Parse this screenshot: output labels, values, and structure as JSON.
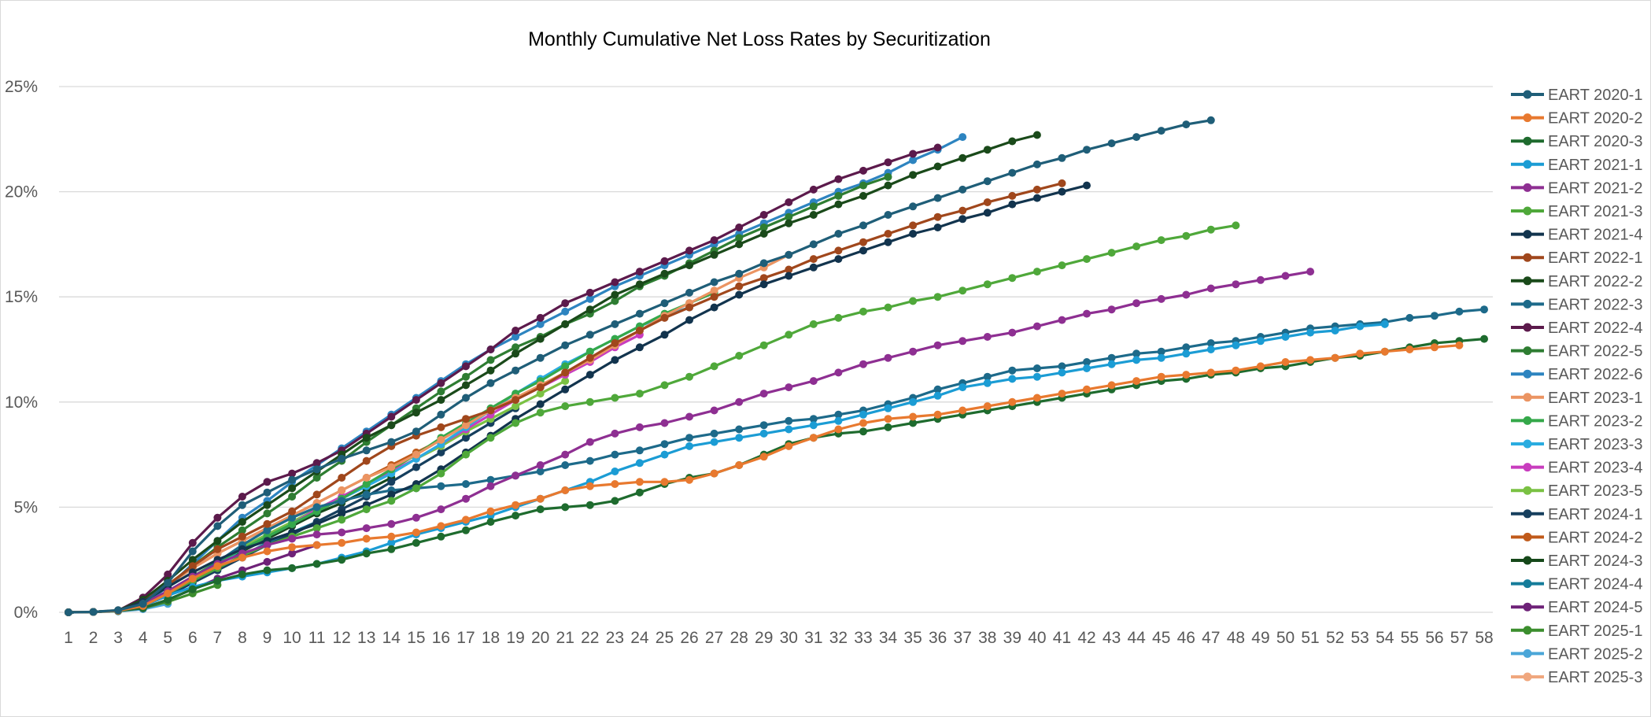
{
  "chart_data": {
    "type": "line",
    "title": "Monthly Cumulative Net Loss Rates by Securitization",
    "xlabel": "",
    "ylabel": "",
    "x_range": [
      1,
      58
    ],
    "ylim": [
      0,
      25
    ],
    "y_ticks": [
      0,
      5,
      10,
      15,
      20,
      25
    ],
    "y_tick_format": "percent",
    "grid": "horizontal",
    "legend": "right",
    "series": [
      {
        "name": "EART 2020-1",
        "color": "#1F5E78",
        "values": [
          0,
          0.02,
          0.1,
          0.4,
          1.4,
          2.9,
          4.1,
          5.1,
          5.7,
          6.3,
          6.8,
          7.3,
          7.7,
          8.1,
          8.6,
          9.4,
          10.2,
          10.9,
          11.5,
          12.1,
          12.7,
          13.2,
          13.7,
          14.2,
          14.7,
          15.2,
          15.7,
          16.1,
          16.6,
          17.0,
          17.5,
          18.0,
          18.4,
          18.9,
          19.3,
          19.7,
          20.1,
          20.5,
          20.9,
          21.3,
          21.6,
          22.0,
          22.3,
          22.6,
          22.9,
          23.2,
          23.4
        ]
      },
      {
        "name": "EART 2020-2",
        "color": "#E8792F",
        "values": [
          0,
          0.02,
          0.08,
          0.3,
          0.9,
          1.6,
          2.2,
          2.6,
          2.9,
          3.1,
          3.2,
          3.3,
          3.5,
          3.6,
          3.8,
          4.1,
          4.4,
          4.8,
          5.1,
          5.4,
          5.8,
          6.0,
          6.1,
          6.2,
          6.2,
          6.3,
          6.6,
          7.0,
          7.4,
          7.9,
          8.3,
          8.7,
          9.0,
          9.2,
          9.3,
          9.4,
          9.6,
          9.8,
          10.0,
          10.2,
          10.4,
          10.6,
          10.8,
          11.0,
          11.2,
          11.3,
          11.4,
          11.5,
          11.7,
          11.9,
          12.0,
          12.1,
          12.3,
          12.4,
          12.5,
          12.6,
          12.7
        ]
      },
      {
        "name": "EART 2020-3",
        "color": "#1E6B2E",
        "values": [
          0,
          0.02,
          0.08,
          0.2,
          0.6,
          1.1,
          1.5,
          1.8,
          2.0,
          2.1,
          2.3,
          2.5,
          2.8,
          3.0,
          3.3,
          3.6,
          3.9,
          4.3,
          4.6,
          4.9,
          5.0,
          5.1,
          5.3,
          5.7,
          6.1,
          6.4,
          6.6,
          7.0,
          7.5,
          8.0,
          8.3,
          8.5,
          8.6,
          8.8,
          9.0,
          9.2,
          9.4,
          9.6,
          9.8,
          10.0,
          10.2,
          10.4,
          10.6,
          10.8,
          11.0,
          11.1,
          11.3,
          11.4,
          11.6,
          11.7,
          11.9,
          12.1,
          12.2,
          12.4,
          12.6,
          12.8,
          12.9,
          13.0
        ]
      },
      {
        "name": "EART 2021-1",
        "color": "#1B9CD4",
        "values": [
          0,
          0.02,
          0.08,
          0.3,
          0.8,
          1.2,
          1.5,
          1.7,
          1.9,
          2.1,
          2.3,
          2.6,
          2.9,
          3.3,
          3.7,
          4.0,
          4.3,
          4.6,
          5.0,
          5.4,
          5.8,
          6.2,
          6.7,
          7.1,
          7.5,
          7.9,
          8.1,
          8.3,
          8.5,
          8.7,
          8.9,
          9.1,
          9.4,
          9.7,
          10.0,
          10.3,
          10.7,
          10.9,
          11.1,
          11.2,
          11.4,
          11.6,
          11.8,
          12.0,
          12.1,
          12.3,
          12.5,
          12.7,
          12.9,
          13.1,
          13.3,
          13.4,
          13.6,
          13.7
        ]
      },
      {
        "name": "EART 2021-2",
        "color": "#8E2F92",
        "values": [
          0,
          0.02,
          0.08,
          0.4,
          1.0,
          1.7,
          2.3,
          2.8,
          3.2,
          3.5,
          3.7,
          3.8,
          4.0,
          4.2,
          4.5,
          4.9,
          5.4,
          6.0,
          6.5,
          7.0,
          7.5,
          8.1,
          8.5,
          8.8,
          9.0,
          9.3,
          9.6,
          10.0,
          10.4,
          10.7,
          11.0,
          11.4,
          11.8,
          12.1,
          12.4,
          12.7,
          12.9,
          13.1,
          13.3,
          13.6,
          13.9,
          14.2,
          14.4,
          14.7,
          14.9,
          15.1,
          15.4,
          15.6,
          15.8,
          16.0,
          16.2
        ]
      },
      {
        "name": "EART 2021-3",
        "color": "#4FA83A",
        "values": [
          0,
          0.02,
          0.08,
          0.4,
          0.9,
          1.5,
          2.1,
          2.7,
          3.2,
          3.6,
          4.0,
          4.4,
          4.9,
          5.3,
          5.9,
          6.6,
          7.5,
          8.3,
          9.0,
          9.5,
          9.8,
          10.0,
          10.2,
          10.4,
          10.8,
          11.2,
          11.7,
          12.2,
          12.7,
          13.2,
          13.7,
          14.0,
          14.3,
          14.5,
          14.8,
          15.0,
          15.3,
          15.6,
          15.9,
          16.2,
          16.5,
          16.8,
          17.1,
          17.4,
          17.7,
          17.9,
          18.2,
          18.4
        ]
      },
      {
        "name": "EART 2021-4",
        "color": "#12344E",
        "values": [
          0,
          0.02,
          0.08,
          0.5,
          1.2,
          1.9,
          2.5,
          3.0,
          3.4,
          3.8,
          4.2,
          4.7,
          5.1,
          5.6,
          6.1,
          6.8,
          7.6,
          8.4,
          9.2,
          9.9,
          10.6,
          11.3,
          12.0,
          12.6,
          13.2,
          13.9,
          14.5,
          15.1,
          15.6,
          16.0,
          16.4,
          16.8,
          17.2,
          17.6,
          18.0,
          18.3,
          18.7,
          19.0,
          19.4,
          19.7,
          20.0,
          20.3
        ]
      },
      {
        "name": "EART 2022-1",
        "color": "#A0471C",
        "values": [
          0,
          0.02,
          0.08,
          0.5,
          1.3,
          2.2,
          3.0,
          3.6,
          4.2,
          4.8,
          5.6,
          6.4,
          7.2,
          7.9,
          8.4,
          8.8,
          9.2,
          9.6,
          10.1,
          10.7,
          11.4,
          12.1,
          12.8,
          13.4,
          14.0,
          14.5,
          15.0,
          15.5,
          15.9,
          16.3,
          16.8,
          17.2,
          17.6,
          18.0,
          18.4,
          18.8,
          19.1,
          19.5,
          19.8,
          20.1,
          20.4
        ]
      },
      {
        "name": "EART 2022-2",
        "color": "#1A4A1A",
        "values": [
          0,
          0.02,
          0.08,
          0.6,
          1.5,
          2.5,
          3.4,
          4.3,
          5.1,
          5.9,
          6.7,
          7.5,
          8.3,
          8.9,
          9.5,
          10.1,
          10.8,
          11.5,
          12.3,
          13.0,
          13.7,
          14.4,
          15.1,
          15.6,
          16.1,
          16.5,
          17.0,
          17.5,
          18.0,
          18.5,
          18.9,
          19.4,
          19.8,
          20.3,
          20.8,
          21.2,
          21.6,
          22.0,
          22.4,
          22.7
        ]
      },
      {
        "name": "EART 2022-3",
        "color": "#1D6A8A",
        "values": [
          0,
          0.02,
          0.08,
          0.3,
          0.8,
          1.6,
          2.4,
          3.2,
          3.9,
          4.5,
          5.0,
          5.3,
          5.6,
          5.8,
          5.9,
          6.0,
          6.1,
          6.3,
          6.5,
          6.7,
          7.0,
          7.2,
          7.5,
          7.7,
          8.0,
          8.3,
          8.5,
          8.7,
          8.9,
          9.1,
          9.2,
          9.4,
          9.6,
          9.9,
          10.2,
          10.6,
          10.9,
          11.2,
          11.5,
          11.6,
          11.7,
          11.9,
          12.1,
          12.3,
          12.4,
          12.6,
          12.8,
          12.9,
          13.1,
          13.3,
          13.5,
          13.6,
          13.7,
          13.8,
          14.0,
          14.1,
          14.3,
          14.4
        ]
      },
      {
        "name": "EART 2022-4",
        "color": "#5C1A4C",
        "values": [
          0,
          0.02,
          0.08,
          0.7,
          1.8,
          3.3,
          4.5,
          5.5,
          6.2,
          6.6,
          7.1,
          7.7,
          8.5,
          9.3,
          10.1,
          10.9,
          11.7,
          12.5,
          13.4,
          14.0,
          14.7,
          15.2,
          15.7,
          16.2,
          16.7,
          17.2,
          17.7,
          18.3,
          18.9,
          19.5,
          20.1,
          20.6,
          21.0,
          21.4,
          21.8,
          22.1
        ]
      },
      {
        "name": "EART 2022-5",
        "color": "#2E7D32",
        "values": [
          0,
          0.02,
          0.08,
          0.5,
          1.3,
          2.2,
          3.1,
          3.9,
          4.7,
          5.5,
          6.4,
          7.2,
          8.1,
          8.9,
          9.7,
          10.5,
          11.2,
          12.0,
          12.6,
          13.1,
          13.7,
          14.2,
          14.8,
          15.5,
          16.0,
          16.6,
          17.2,
          17.8,
          18.3,
          18.8,
          19.3,
          19.8,
          20.3,
          20.7
        ]
      },
      {
        "name": "EART 2022-6",
        "color": "#2D84C0",
        "values": [
          0,
          0.02,
          0.08,
          0.4,
          1.2,
          2.3,
          3.4,
          4.5,
          5.3,
          6.2,
          7.0,
          7.8,
          8.6,
          9.4,
          10.2,
          11.0,
          11.8,
          12.5,
          13.1,
          13.7,
          14.3,
          14.9,
          15.5,
          16.0,
          16.5,
          17.0,
          17.5,
          18.0,
          18.5,
          19.0,
          19.5,
          20.0,
          20.4,
          20.9,
          21.5,
          22.0,
          22.6
        ]
      },
      {
        "name": "EART 2023-1",
        "color": "#EB9462",
        "values": [
          0,
          0.02,
          0.1,
          0.5,
          1.3,
          2.1,
          2.8,
          3.4,
          4.0,
          4.6,
          5.2,
          5.8,
          6.4,
          6.9,
          7.5,
          8.2,
          8.9,
          9.6,
          10.2,
          10.8,
          11.4,
          12.0,
          12.7,
          13.4,
          14.1,
          14.7,
          15.3,
          15.9,
          16.4,
          17.0
        ]
      },
      {
        "name": "EART 2023-2",
        "color": "#35A84A",
        "values": [
          0,
          0.02,
          0.08,
          0.4,
          1.0,
          1.7,
          2.4,
          3.0,
          3.6,
          4.2,
          4.8,
          5.4,
          6.1,
          6.8,
          7.5,
          8.3,
          9.0,
          9.7,
          10.4,
          11.0,
          11.7,
          12.4,
          13.0,
          13.6,
          14.2,
          14.7,
          15.2
        ]
      },
      {
        "name": "EART 2023-3",
        "color": "#2AACE0",
        "values": [
          0,
          0.02,
          0.08,
          0.3,
          0.9,
          1.6,
          2.3,
          3.0,
          3.6,
          4.2,
          4.8,
          5.4,
          6.0,
          6.6,
          7.3,
          8.0,
          8.8,
          9.6,
          10.4,
          11.1,
          11.8,
          12.4,
          13.0,
          13.6,
          14.1,
          14.5
        ]
      },
      {
        "name": "EART 2023-4",
        "color": "#C83DBE",
        "values": [
          0,
          0.02,
          0.08,
          0.4,
          1.0,
          1.7,
          2.4,
          3.0,
          3.6,
          4.2,
          4.9,
          5.5,
          6.1,
          6.7,
          7.3,
          8.0,
          8.7,
          9.4,
          10.1,
          10.7,
          11.3,
          11.9,
          12.6,
          13.2
        ]
      },
      {
        "name": "EART 2023-5",
        "color": "#7AC143",
        "values": [
          0,
          0.02,
          0.08,
          0.4,
          1.0,
          1.7,
          2.4,
          3.1,
          3.7,
          4.3,
          4.9,
          5.5,
          6.1,
          6.7,
          7.3,
          7.9,
          8.6,
          9.2,
          9.8,
          10.4,
          11.0
        ]
      },
      {
        "name": "EART 2024-1",
        "color": "#163F5E",
        "values": [
          0,
          0.02,
          0.08,
          0.3,
          0.8,
          1.4,
          2.0,
          2.6,
          3.2,
          3.7,
          4.3,
          4.9,
          5.5,
          6.2,
          6.9,
          7.6,
          8.3,
          9.0,
          9.7
        ]
      },
      {
        "name": "EART 2024-2",
        "color": "#C05A1A",
        "values": [
          0,
          0.02,
          0.08,
          0.5,
          1.3,
          2.1,
          2.8,
          3.4,
          4.0,
          4.6,
          5.2,
          5.8,
          6.4,
          7.0,
          7.6,
          8.2
        ]
      },
      {
        "name": "EART 2024-3",
        "color": "#16481A",
        "values": [
          0,
          0.02,
          0.08,
          0.3,
          0.9,
          1.6,
          2.3,
          2.9,
          3.5,
          4.1,
          4.7,
          5.2,
          5.8,
          6.4
        ]
      },
      {
        "name": "EART 2024-4",
        "color": "#157C9A",
        "values": [
          0,
          0.02,
          0.08,
          0.3,
          0.8,
          1.5,
          2.1,
          2.7,
          3.3,
          3.8,
          4.3
        ]
      },
      {
        "name": "EART 2024-5",
        "color": "#6E2278",
        "values": [
          0,
          0.02,
          0.08,
          0.2,
          0.6,
          1.1,
          1.6,
          2.0,
          2.4,
          2.8,
          3.2
        ]
      },
      {
        "name": "EART 2025-1",
        "color": "#3C8E2E",
        "values": [
          0,
          0.02,
          0.06,
          0.2,
          0.5,
          0.9,
          1.3
        ]
      },
      {
        "name": "EART 2025-2",
        "color": "#4BA6D8",
        "values": [
          0,
          0.02,
          0.05,
          0.15,
          0.4
        ]
      },
      {
        "name": "EART 2025-3",
        "color": "#F0A77E",
        "values": [
          0,
          0.02,
          0.05
        ]
      }
    ]
  }
}
